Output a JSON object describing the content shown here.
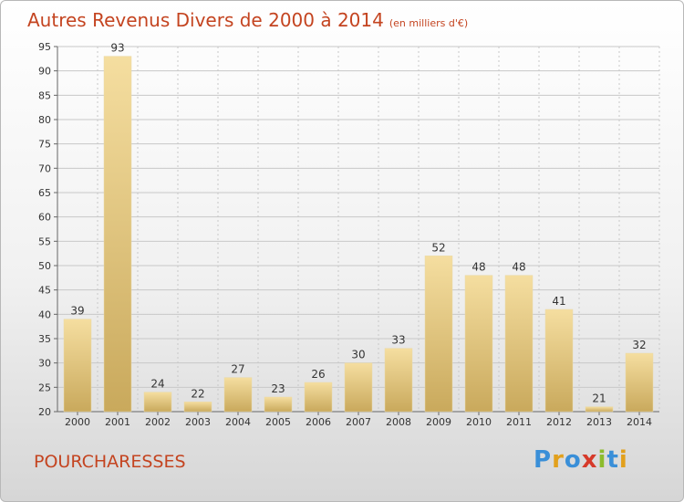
{
  "header": {
    "title": "Autres Revenus Divers de 2000 à 2014",
    "subtitle": "(en milliers d'€)"
  },
  "footer": {
    "commune": "POURCHARESSES",
    "logo_letters": [
      "P",
      "r",
      "o",
      "x",
      "i",
      "t",
      "i"
    ],
    "logo_colors": [
      "#3a8fd8",
      "#e2a01c",
      "#3a8fd8",
      "#d63a2a",
      "#8cbc2c",
      "#3a8fd8",
      "#e2a01c"
    ]
  },
  "colors": {
    "title": "#c44420",
    "bar_light": "#f5dea0",
    "bar_dark": "#c9a95c",
    "grid": "#c8c8c8",
    "axis": "#666666"
  },
  "chart_data": {
    "type": "bar",
    "categories": [
      "2000",
      "2001",
      "2002",
      "2003",
      "2004",
      "2005",
      "2006",
      "2007",
      "2008",
      "2009",
      "2010",
      "2011",
      "2012",
      "2013",
      "2014"
    ],
    "values": [
      39,
      93,
      24,
      22,
      27,
      23,
      26,
      30,
      33,
      52,
      48,
      48,
      41,
      21,
      32
    ],
    "ylim": [
      20,
      95
    ],
    "yticks": [
      20,
      25,
      30,
      35,
      40,
      45,
      50,
      55,
      60,
      65,
      70,
      75,
      80,
      85,
      90,
      95
    ],
    "grid": true,
    "legend": "none"
  }
}
